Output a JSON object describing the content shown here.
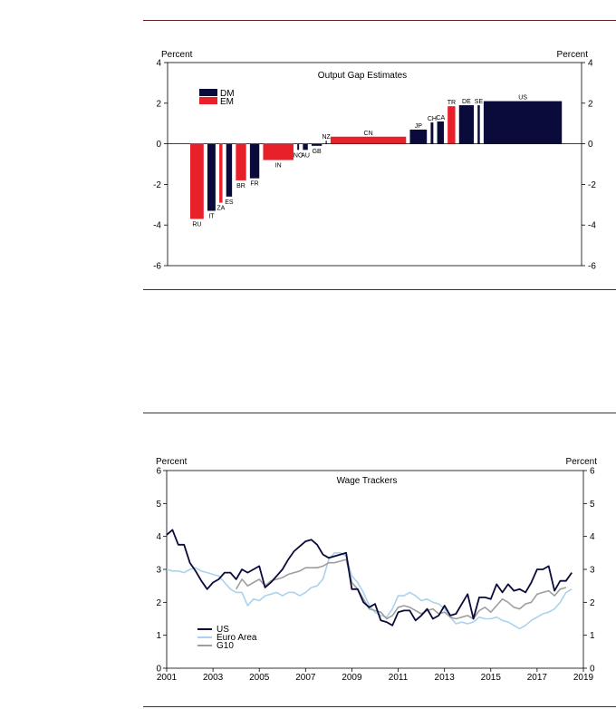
{
  "chart_data": [
    {
      "type": "bar",
      "title": "Output Gap Estimates",
      "ylabel_left": "Percent",
      "ylabel_right": "Percent",
      "ylim": [
        -6,
        4
      ],
      "yticks": [
        4,
        2,
        0,
        -2,
        -4,
        -6
      ],
      "legend": {
        "placement": "top-left",
        "items": [
          {
            "name": "DM",
            "color": "#0b0b3b"
          },
          {
            "name": "EM",
            "color": "#e8202a"
          }
        ]
      },
      "bars": [
        {
          "label": "RU",
          "value": -3.7,
          "group": "EM",
          "weight": 3.0
        },
        {
          "label": "IT",
          "value": -3.3,
          "group": "DM",
          "weight": 1.8
        },
        {
          "label": "ZA",
          "value": -2.9,
          "group": "EM",
          "weight": 0.7
        },
        {
          "label": "ES",
          "value": -2.6,
          "group": "DM",
          "weight": 1.3
        },
        {
          "label": "BR",
          "value": -1.8,
          "group": "EM",
          "weight": 2.3
        },
        {
          "label": "FR",
          "value": -1.7,
          "group": "DM",
          "weight": 2.1
        },
        {
          "label": "IN",
          "value": -0.8,
          "group": "EM",
          "weight": 6.8
        },
        {
          "label": "NO",
          "value": -0.3,
          "group": "DM",
          "weight": 0.4
        },
        {
          "label": "AU",
          "value": -0.3,
          "group": "DM",
          "weight": 1.1
        },
        {
          "label": "GB",
          "value": -0.1,
          "group": "DM",
          "weight": 2.3
        },
        {
          "label": "NZ",
          "value": 0.15,
          "group": "DM",
          "weight": 0.2
        },
        {
          "label": "CN",
          "value": 0.35,
          "group": "EM",
          "weight": 16.9
        },
        {
          "label": "JP",
          "value": 0.7,
          "group": "DM",
          "weight": 3.8
        },
        {
          "label": "CH",
          "value": 1.05,
          "group": "DM",
          "weight": 0.6
        },
        {
          "label": "CA",
          "value": 1.1,
          "group": "DM",
          "weight": 1.5
        },
        {
          "label": "TR",
          "value": 1.85,
          "group": "EM",
          "weight": 1.7
        },
        {
          "label": "DE",
          "value": 1.9,
          "group": "DM",
          "weight": 3.3
        },
        {
          "label": "SE",
          "value": 1.9,
          "group": "DM",
          "weight": 0.5
        },
        {
          "label": "US",
          "value": 2.1,
          "group": "DM",
          "weight": 17.5
        }
      ]
    },
    {
      "type": "line",
      "title": "Wage Trackers",
      "ylabel_left": "Percent",
      "ylabel_right": "Percent",
      "ylim": [
        0,
        6
      ],
      "xlim": [
        2001,
        2019
      ],
      "yticks": [
        0,
        1,
        2,
        3,
        4,
        5,
        6
      ],
      "xticks": [
        "2001",
        "2003",
        "2005",
        "2007",
        "2009",
        "2011",
        "2013",
        "2015",
        "2017",
        "2019"
      ],
      "legend": {
        "placement": "bottom-left"
      },
      "series": [
        {
          "name": "US",
          "color": "#0b0b3b",
          "x": [
            2001.0,
            2001.25,
            2001.5,
            2001.75,
            2002.0,
            2002.25,
            2002.5,
            2002.75,
            2003.0,
            2003.25,
            2003.5,
            2003.75,
            2004.0,
            2004.25,
            2004.5,
            2004.75,
            2005.0,
            2005.25,
            2005.5,
            2005.75,
            2006.0,
            2006.25,
            2006.5,
            2006.75,
            2007.0,
            2007.25,
            2007.5,
            2007.75,
            2008.0,
            2008.25,
            2008.5,
            2008.75,
            2009.0,
            2009.25,
            2009.5,
            2009.75,
            2010.0,
            2010.25,
            2010.5,
            2010.75,
            2011.0,
            2011.25,
            2011.5,
            2011.75,
            2012.0,
            2012.25,
            2012.5,
            2012.75,
            2013.0,
            2013.25,
            2013.5,
            2013.75,
            2014.0,
            2014.25,
            2014.5,
            2014.75,
            2015.0,
            2015.25,
            2015.5,
            2015.75,
            2016.0,
            2016.25,
            2016.5,
            2016.75,
            2017.0,
            2017.25,
            2017.5,
            2017.75,
            2018.0,
            2018.25,
            2018.5
          ],
          "y": [
            4.05,
            4.2,
            3.75,
            3.75,
            3.2,
            2.95,
            2.65,
            2.4,
            2.6,
            2.7,
            2.9,
            2.9,
            2.7,
            3.0,
            2.9,
            3.0,
            3.1,
            2.45,
            2.6,
            2.8,
            3.0,
            3.3,
            3.55,
            3.7,
            3.85,
            3.9,
            3.75,
            3.45,
            3.35,
            3.4,
            3.45,
            3.5,
            2.4,
            2.4,
            2.0,
            1.85,
            1.95,
            1.45,
            1.4,
            1.3,
            1.7,
            1.75,
            1.75,
            1.45,
            1.6,
            1.8,
            1.5,
            1.6,
            1.9,
            1.6,
            1.65,
            1.95,
            2.25,
            1.5,
            2.15,
            2.15,
            2.1,
            2.55,
            2.3,
            2.55,
            2.35,
            2.4,
            2.3,
            2.6,
            3.0,
            3.0,
            3.1,
            2.35,
            2.65,
            2.65,
            2.9
          ]
        },
        {
          "name": "Euro Area",
          "color": "#a9d3ec",
          "x": [
            2001.0,
            2001.25,
            2001.5,
            2001.75,
            2002.0,
            2002.25,
            2002.5,
            2002.75,
            2003.0,
            2003.25,
            2003.5,
            2003.75,
            2004.0,
            2004.25,
            2004.5,
            2004.75,
            2005.0,
            2005.25,
            2005.5,
            2005.75,
            2006.0,
            2006.25,
            2006.5,
            2006.75,
            2007.0,
            2007.25,
            2007.5,
            2007.75,
            2008.0,
            2008.25,
            2008.5,
            2008.75,
            2009.0,
            2009.25,
            2009.5,
            2009.75,
            2010.0,
            2010.25,
            2010.5,
            2010.75,
            2011.0,
            2011.25,
            2011.5,
            2011.75,
            2012.0,
            2012.25,
            2012.5,
            2012.75,
            2013.0,
            2013.25,
            2013.5,
            2013.75,
            2014.0,
            2014.25,
            2014.5,
            2014.75,
            2015.0,
            2015.25,
            2015.5,
            2015.75,
            2016.0,
            2016.25,
            2016.5,
            2016.75,
            2017.0,
            2017.25,
            2017.5,
            2017.75,
            2018.0,
            2018.25,
            2018.5
          ],
          "y": [
            3.0,
            2.95,
            2.95,
            2.9,
            3.0,
            3.05,
            2.95,
            2.9,
            2.85,
            2.8,
            2.6,
            2.4,
            2.3,
            2.3,
            1.9,
            2.1,
            2.05,
            2.2,
            2.25,
            2.3,
            2.2,
            2.3,
            2.3,
            2.2,
            2.3,
            2.45,
            2.5,
            2.7,
            3.3,
            3.5,
            3.5,
            3.4,
            2.8,
            2.6,
            2.3,
            1.9,
            1.7,
            1.6,
            1.55,
            1.8,
            2.2,
            2.2,
            2.3,
            2.2,
            2.05,
            2.1,
            2.0,
            1.95,
            1.8,
            1.55,
            1.35,
            1.4,
            1.35,
            1.4,
            1.55,
            1.5,
            1.5,
            1.55,
            1.45,
            1.4,
            1.3,
            1.2,
            1.3,
            1.45,
            1.55,
            1.65,
            1.7,
            1.8,
            2.0,
            2.3,
            2.4
          ]
        },
        {
          "name": "G10",
          "color": "#9e9e9e",
          "x": [
            2001.0,
            2001.25,
            2001.5,
            2001.75,
            2002.0,
            2002.25,
            2002.5,
            2002.75,
            2003.0,
            2003.25,
            2003.5,
            2003.75,
            2004.0,
            2004.25,
            2004.5,
            2004.75,
            2005.0,
            2005.25,
            2005.5,
            2005.75,
            2006.0,
            2006.25,
            2006.5,
            2006.75,
            2007.0,
            2007.25,
            2007.5,
            2007.75,
            2008.0,
            2008.25,
            2008.5,
            2008.75,
            2009.0,
            2009.25,
            2009.5,
            2009.75,
            2010.0,
            2010.25,
            2010.5,
            2010.75,
            2011.0,
            2011.25,
            2011.5,
            2011.75,
            2012.0,
            2012.25,
            2012.5,
            2012.75,
            2013.0,
            2013.25,
            2013.5,
            2013.75,
            2014.0,
            2014.25,
            2014.5,
            2014.75,
            2015.0,
            2015.25,
            2015.5,
            2015.75,
            2016.0,
            2016.25,
            2016.5,
            2016.75,
            2017.0,
            2017.25,
            2017.5,
            2017.75,
            2018.0,
            2018.25,
            2018.5
          ],
          "y": [
            null,
            null,
            null,
            null,
            null,
            null,
            null,
            null,
            null,
            null,
            null,
            null,
            2.4,
            2.7,
            2.5,
            2.6,
            2.7,
            2.5,
            2.65,
            2.7,
            2.75,
            2.85,
            2.9,
            2.95,
            3.05,
            3.05,
            3.05,
            3.1,
            3.2,
            3.2,
            3.25,
            3.3,
            2.6,
            2.4,
            2.1,
            1.8,
            1.75,
            1.7,
            1.5,
            1.6,
            1.85,
            1.9,
            1.85,
            1.75,
            1.65,
            1.75,
            1.8,
            1.65,
            1.7,
            1.55,
            1.5,
            1.55,
            1.6,
            1.5,
            1.75,
            1.85,
            1.7,
            1.9,
            2.1,
            2.0,
            1.85,
            1.8,
            1.95,
            2.0,
            2.25,
            2.3,
            2.35,
            2.2,
            2.4,
            2.45,
            null
          ]
        }
      ]
    }
  ]
}
